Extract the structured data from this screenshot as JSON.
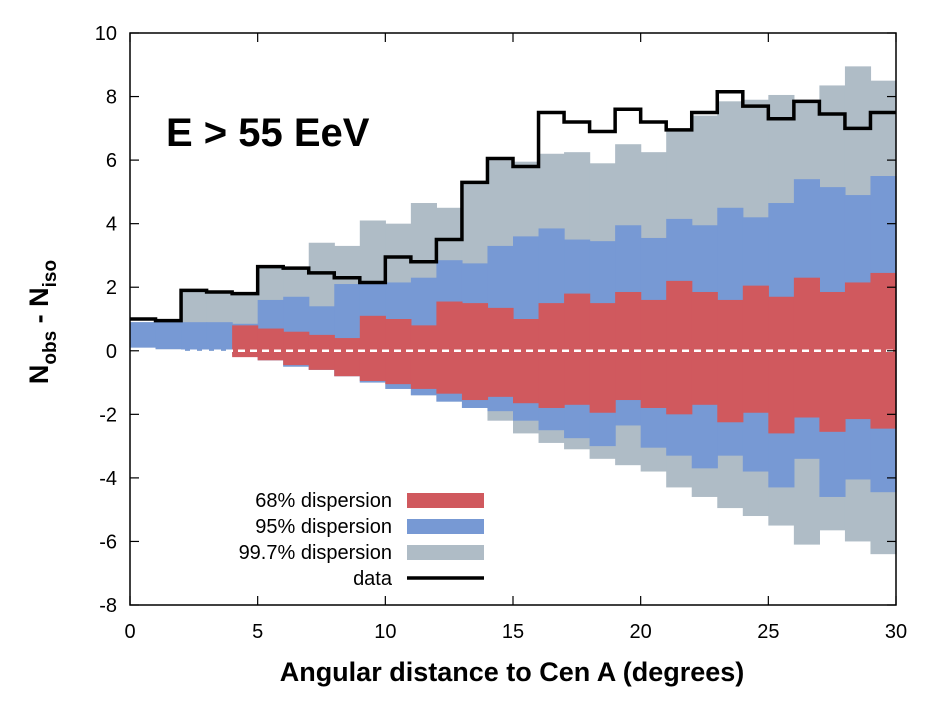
{
  "chart_data": {
    "type": "area",
    "title": "",
    "annotation": "E > 55 EeV",
    "xlabel": "Angular distance to Cen A (degrees)",
    "ylabel_main": "N",
    "ylabel_sub1": "obs",
    "ylabel_mid": " - N",
    "ylabel_sub2": "iso",
    "xlim": [
      0,
      30
    ],
    "ylim": [
      -8,
      10
    ],
    "xticks": [
      0,
      5,
      10,
      15,
      20,
      25,
      30
    ],
    "yticks": [
      -8,
      -6,
      -4,
      -2,
      0,
      2,
      4,
      6,
      8,
      10
    ],
    "bin_width": 1,
    "bin_left_edges": [
      0,
      1,
      2,
      3,
      4,
      5,
      6,
      7,
      8,
      9,
      10,
      11,
      12,
      13,
      14,
      15,
      16,
      17,
      18,
      19,
      20,
      21,
      22,
      23,
      24,
      25,
      26,
      27,
      28,
      29
    ],
    "series": [
      {
        "name": "99.7% dispersion",
        "color": "#afbcc6",
        "upper": [
          0.9,
          0.95,
          1.9,
          1.85,
          1.8,
          2.65,
          2.6,
          3.4,
          3.3,
          4.1,
          4.0,
          4.65,
          4.5,
          5.3,
          6.0,
          5.95,
          6.2,
          6.25,
          5.9,
          6.5,
          6.25,
          6.95,
          7.4,
          7.85,
          7.9,
          8.05,
          7.9,
          8.35,
          8.95,
          8.5
        ],
        "lower": [
          0.1,
          0.05,
          0.0,
          0.0,
          -0.15,
          -0.3,
          -0.5,
          -0.6,
          -0.8,
          -1.0,
          -1.2,
          -1.4,
          -1.6,
          -1.8,
          -2.2,
          -2.6,
          -2.9,
          -3.1,
          -3.4,
          -3.6,
          -3.8,
          -4.3,
          -4.6,
          -4.95,
          -5.2,
          -5.5,
          -6.1,
          -5.65,
          -6.0,
          -6.4
        ]
      },
      {
        "name": "95% dispersion",
        "color": "#7799d4",
        "upper": [
          0.9,
          0.95,
          0.9,
          0.9,
          0.85,
          1.6,
          1.7,
          1.4,
          2.1,
          2.15,
          2.15,
          2.3,
          2.85,
          2.75,
          3.3,
          3.6,
          3.85,
          3.5,
          3.45,
          3.95,
          3.55,
          4.15,
          3.95,
          4.5,
          4.2,
          4.65,
          5.4,
          5.15,
          4.9,
          5.5
        ],
        "lower": [
          0.1,
          0.05,
          0.0,
          0.0,
          -0.1,
          -0.3,
          -0.5,
          -0.6,
          -0.8,
          -1.0,
          -1.2,
          -1.4,
          -1.6,
          -1.8,
          -1.9,
          -2.2,
          -2.5,
          -2.75,
          -3.0,
          -2.35,
          -3.05,
          -3.3,
          -3.7,
          -3.3,
          -3.8,
          -4.3,
          -3.4,
          -4.6,
          -4.05,
          -4.45
        ]
      },
      {
        "name": "68% dispersion",
        "color": "#d0595e",
        "upper": [
          0.0,
          0.0,
          0.0,
          0.0,
          0.8,
          0.7,
          0.6,
          0.5,
          0.4,
          1.1,
          1.0,
          0.8,
          1.55,
          1.5,
          1.35,
          1.0,
          1.5,
          1.8,
          1.5,
          1.85,
          1.6,
          2.2,
          1.85,
          1.6,
          2.05,
          1.7,
          2.3,
          1.85,
          2.15,
          2.45
        ],
        "lower": [
          0.0,
          0.0,
          0.0,
          0.0,
          -0.2,
          -0.3,
          -0.45,
          -0.6,
          -0.8,
          -0.95,
          -1.05,
          -1.2,
          -1.35,
          -1.55,
          -1.45,
          -1.65,
          -1.8,
          -1.7,
          -1.95,
          -1.55,
          -1.8,
          -2.0,
          -1.7,
          -2.25,
          -1.95,
          -2.6,
          -2.1,
          -2.55,
          -2.15,
          -2.45
        ]
      }
    ],
    "data_series": {
      "name": "data",
      "color": "#000000",
      "values": [
        1.0,
        0.95,
        1.9,
        1.85,
        1.8,
        2.65,
        2.6,
        2.45,
        2.3,
        2.15,
        2.95,
        2.8,
        3.5,
        5.3,
        6.05,
        5.8,
        7.5,
        7.2,
        6.9,
        7.6,
        7.2,
        6.95,
        7.5,
        8.15,
        7.7,
        7.3,
        7.85,
        7.45,
        7.0,
        7.5
      ]
    },
    "legend_position": "bottom-left",
    "legend": [
      "68% dispersion",
      "95% dispersion",
      "99.7% dispersion",
      "data"
    ],
    "zero_line": true
  }
}
